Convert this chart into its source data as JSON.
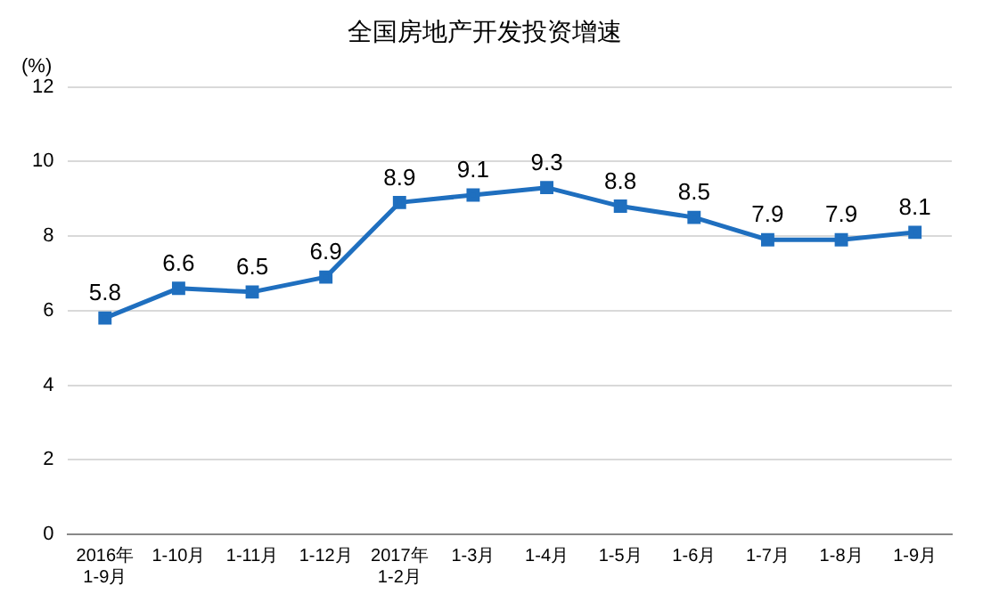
{
  "chart_data": {
    "type": "line",
    "title": "全国房地产开发投资增速",
    "ylabel": "(%)",
    "categories": [
      "2016年\n1-9月",
      "1-10月",
      "1-11月",
      "1-12月",
      "2017年\n1-2月",
      "1-3月",
      "1-4月",
      "1-5月",
      "1-6月",
      "1-7月",
      "1-8月",
      "1-9月"
    ],
    "series": [
      {
        "color": "#1f6fbf",
        "values": [
          5.8,
          6.6,
          6.5,
          6.9,
          8.9,
          9.1,
          9.3,
          8.8,
          8.5,
          7.9,
          7.9,
          8.1
        ]
      }
    ],
    "ylim": [
      0,
      12
    ],
    "yticks": [
      0,
      2,
      4,
      6,
      8,
      10,
      12
    ],
    "grid": "y",
    "marker": "square",
    "line_style": "solid",
    "data_labels": true,
    "legend": false
  }
}
